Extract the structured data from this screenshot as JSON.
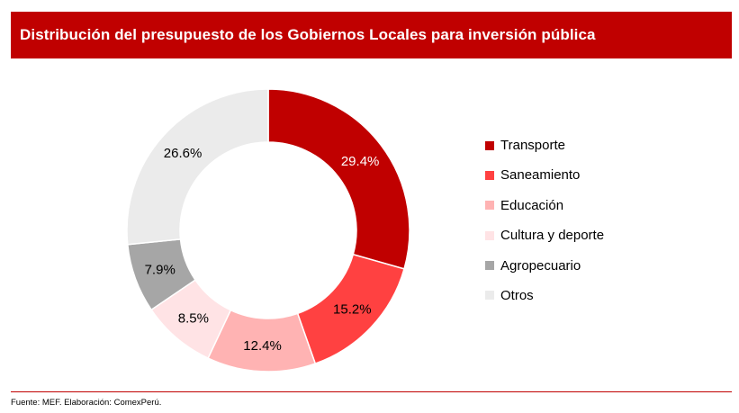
{
  "header": {
    "title": "Distribución del presupuesto de los Gobiernos Locales para inversión pública"
  },
  "chart_data": {
    "type": "pie",
    "donut": true,
    "title": "Distribución del presupuesto de los Gobiernos Locales para inversión pública",
    "categories": [
      "Transporte",
      "Saneamiento",
      "Educación",
      "Cultura y deporte",
      "Agropecuario",
      "Otros"
    ],
    "values": [
      29.4,
      15.2,
      12.4,
      8.5,
      7.9,
      26.6
    ],
    "labels": [
      "29.4%",
      "15.2%",
      "12.4%",
      "8.5%",
      "7.9%",
      "26.6%"
    ],
    "colors": [
      "#c00000",
      "#ff4141",
      "#ffb3b3",
      "#ffe3e5",
      "#a6a6a6",
      "#ebebeb"
    ],
    "legend_position": "right"
  },
  "footer": {
    "source": "Fuente: MEF. Elaboración: ComexPerú."
  }
}
